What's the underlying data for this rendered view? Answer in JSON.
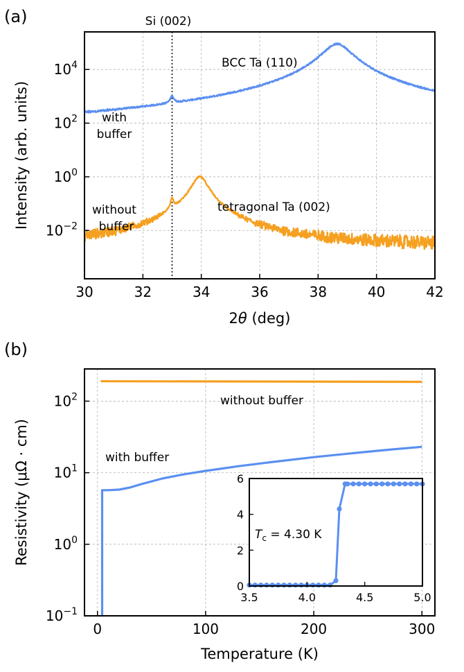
{
  "chart_data": [
    {
      "type": "line",
      "panel_label": "(a)",
      "xlabel_pre": "2",
      "xlabel_theta": "θ",
      "xlabel_post": " (deg)",
      "ylabel": "Intensity (arb. units)",
      "xlim": [
        30,
        42
      ],
      "ylim_log10": [
        -3.8,
        5.4
      ],
      "y_scale": "log",
      "grid": true,
      "x_ticks": [
        "30",
        "32",
        "34",
        "36",
        "38",
        "40",
        "42"
      ],
      "x_tick_values": [
        30,
        32,
        34,
        36,
        38,
        40,
        42
      ],
      "y_ticks": [
        {
          "exp": -2,
          "base": "10",
          "sup": "−2"
        },
        {
          "exp": 0,
          "base": "10",
          "sup": "0"
        },
        {
          "exp": 2,
          "base": "10",
          "sup": "2"
        },
        {
          "exp": 4,
          "base": "10",
          "sup": "4"
        }
      ],
      "reference_line": {
        "x": 33.0,
        "label": "Si (002)"
      },
      "annotations": {
        "bcc": "BCC Ta (110)",
        "tetra": "tetragonal Ta (002)",
        "with_1": "with",
        "with_2": "buffer",
        "without_1": "without",
        "without_2": "buffer"
      },
      "series": [
        {
          "name": "with buffer",
          "color": "#5b8ff0",
          "baseline_log10": 1.1,
          "peaks": [
            {
              "center": 33.0,
              "height_log10": 2.7,
              "width": 0.06
            },
            {
              "center": 38.65,
              "height_log10": 4.95,
              "width": 0.45
            }
          ]
        },
        {
          "name": "without buffer",
          "color": "#f5a020",
          "baseline_log10": -2.6,
          "peaks": [
            {
              "center": 33.0,
              "height_log10": -1.0,
              "width": 0.06
            },
            {
              "center": 33.95,
              "height_log10": 0.0,
              "width": 0.25
            }
          ]
        }
      ]
    },
    {
      "type": "line",
      "panel_label": "(b)",
      "xlabel": "Temperature (K)",
      "ylabel": "Resistivity (μΩ · cm)",
      "xlim": [
        -12,
        312
      ],
      "ylim_log10": [
        -1,
        2.45
      ],
      "y_scale": "log",
      "grid": true,
      "x_ticks": [
        "0",
        "100",
        "200",
        "300"
      ],
      "x_tick_values": [
        0,
        100,
        200,
        300
      ],
      "y_ticks": [
        {
          "exp": -1,
          "base": "10",
          "sup": "−1"
        },
        {
          "exp": 0,
          "base": "10",
          "sup": "0"
        },
        {
          "exp": 1,
          "base": "10",
          "sup": "1"
        },
        {
          "exp": 2,
          "base": "10",
          "sup": "2"
        }
      ],
      "annotations": {
        "without": "without buffer",
        "with": "with buffer"
      },
      "series": [
        {
          "name": "without buffer",
          "color": "#f5a020",
          "x": [
            3,
            300
          ],
          "y": [
            190,
            186
          ]
        },
        {
          "name": "with buffer",
          "color": "#5b8ff0",
          "x": [
            4.3,
            4.35,
            10,
            20,
            30,
            40,
            60,
            80,
            100,
            130,
            160,
            200,
            240,
            270,
            300
          ],
          "y": [
            0.05,
            5.7,
            5.7,
            5.8,
            6.2,
            6.9,
            8.3,
            9.5,
            10.6,
            12.3,
            14.0,
            16.5,
            19.0,
            21.0,
            23.0
          ]
        }
      ],
      "inset": {
        "xlim": [
          3.5,
          5.0
        ],
        "ylim": [
          0,
          6
        ],
        "x_ticks": [
          "3.5",
          "4.0",
          "4.5",
          "5.0"
        ],
        "x_tick_values": [
          3.5,
          4.0,
          4.5,
          5.0
        ],
        "y_ticks": [
          "0",
          "2",
          "4",
          "6"
        ],
        "y_tick_values": [
          0,
          2,
          4,
          6
        ],
        "tc_symbol": "T",
        "tc_sub": "c",
        "tc_value": " = 4.30 K",
        "series": {
          "color": "#5b8ff0",
          "x": [
            3.5,
            3.55,
            3.6,
            3.65,
            3.7,
            3.75,
            3.8,
            3.85,
            3.9,
            3.95,
            4.0,
            4.05,
            4.1,
            4.15,
            4.2,
            4.25,
            4.28,
            4.33,
            4.35,
            4.4,
            4.45,
            4.5,
            4.55,
            4.6,
            4.65,
            4.7,
            4.75,
            4.8,
            4.85,
            4.9,
            4.95,
            5.0
          ],
          "y": [
            0.05,
            0.05,
            0.05,
            0.05,
            0.05,
            0.05,
            0.05,
            0.05,
            0.05,
            0.05,
            0.05,
            0.05,
            0.05,
            0.05,
            0.05,
            0.3,
            4.3,
            5.7,
            5.7,
            5.7,
            5.7,
            5.7,
            5.7,
            5.7,
            5.7,
            5.7,
            5.7,
            5.7,
            5.7,
            5.7,
            5.7,
            5.7
          ]
        }
      }
    }
  ]
}
